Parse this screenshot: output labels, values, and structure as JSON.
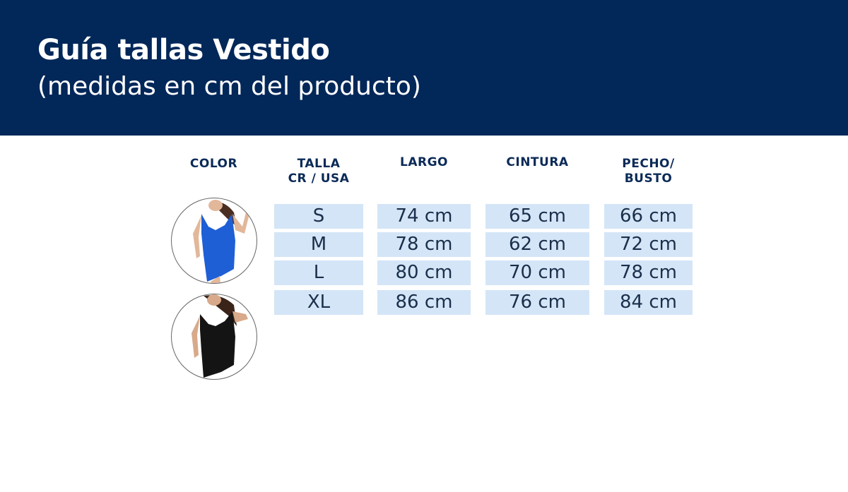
{
  "header": {
    "title": "Guía tallas Vestido",
    "subtitle": "(medidas en cm del producto)"
  },
  "columns": [
    "COLOR",
    "TALLA\nCR / USA",
    "LARGO",
    "CINTURA",
    "PECHO/\nBUSTO"
  ],
  "colors": [
    {
      "name": "blue-dress",
      "hex": "#1e5fd6"
    },
    {
      "name": "black-dress",
      "hex": "#141414"
    }
  ],
  "rows": [
    [
      "S",
      "74 cm",
      "65 cm",
      "66 cm"
    ],
    [
      "M",
      "78 cm",
      "62 cm",
      "72 cm"
    ],
    [
      "L",
      "80 cm",
      "70 cm",
      "78 cm"
    ],
    [
      "XL",
      "86 cm",
      "76 cm",
      "84 cm"
    ]
  ],
  "theme": {
    "header_bg": "#022759",
    "cell_bg": "#d4e5f7"
  }
}
